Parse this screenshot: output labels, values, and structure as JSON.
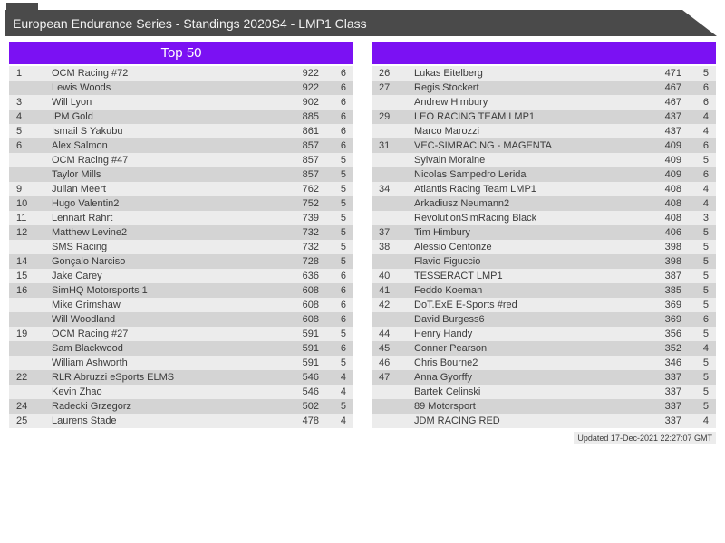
{
  "header": {
    "title": "European Endurance Series - Standings 2020S4 - LMP1 Class"
  },
  "left_table": {
    "title": "Top 50",
    "rows": [
      {
        "rank": "1",
        "name": "OCM Racing #72",
        "pts": "922",
        "races": "6"
      },
      {
        "rank": "",
        "name": "Lewis Woods",
        "pts": "922",
        "races": "6"
      },
      {
        "rank": "3",
        "name": "Will Lyon",
        "pts": "902",
        "races": "6"
      },
      {
        "rank": "4",
        "name": "IPM Gold",
        "pts": "885",
        "races": "6"
      },
      {
        "rank": "5",
        "name": "Ismail S Yakubu",
        "pts": "861",
        "races": "6"
      },
      {
        "rank": "6",
        "name": "Alex Salmon",
        "pts": "857",
        "races": "6"
      },
      {
        "rank": "",
        "name": "OCM Racing #47",
        "pts": "857",
        "races": "5"
      },
      {
        "rank": "",
        "name": "Taylor Mills",
        "pts": "857",
        "races": "5"
      },
      {
        "rank": "9",
        "name": "Julian Meert",
        "pts": "762",
        "races": "5"
      },
      {
        "rank": "10",
        "name": "Hugo Valentin2",
        "pts": "752",
        "races": "5"
      },
      {
        "rank": "11",
        "name": "Lennart Rahrt",
        "pts": "739",
        "races": "5"
      },
      {
        "rank": "12",
        "name": "Matthew Levine2",
        "pts": "732",
        "races": "5"
      },
      {
        "rank": "",
        "name": "SMS Racing",
        "pts": "732",
        "races": "5"
      },
      {
        "rank": "14",
        "name": "Gonçalo Narciso",
        "pts": "728",
        "races": "5"
      },
      {
        "rank": "15",
        "name": "Jake Carey",
        "pts": "636",
        "races": "6"
      },
      {
        "rank": "16",
        "name": "SimHQ Motorsports 1",
        "pts": "608",
        "races": "6"
      },
      {
        "rank": "",
        "name": "Mike Grimshaw",
        "pts": "608",
        "races": "6"
      },
      {
        "rank": "",
        "name": "Will Woodland",
        "pts": "608",
        "races": "6"
      },
      {
        "rank": "19",
        "name": "OCM Racing #27",
        "pts": "591",
        "races": "5"
      },
      {
        "rank": "",
        "name": "Sam Blackwood",
        "pts": "591",
        "races": "6"
      },
      {
        "rank": "",
        "name": "William Ashworth",
        "pts": "591",
        "races": "5"
      },
      {
        "rank": "22",
        "name": "RLR Abruzzi eSports ELMS",
        "pts": "546",
        "races": "4"
      },
      {
        "rank": "",
        "name": "Kevin Zhao",
        "pts": "546",
        "races": "4"
      },
      {
        "rank": "24",
        "name": "Radecki Grzegorz",
        "pts": "502",
        "races": "5"
      },
      {
        "rank": "25",
        "name": "Laurens Stade",
        "pts": "478",
        "races": "4"
      }
    ]
  },
  "right_table": {
    "title": "",
    "rows": [
      {
        "rank": "26",
        "name": "Lukas Eitelberg",
        "pts": "471",
        "races": "5"
      },
      {
        "rank": "27",
        "name": "Regis Stockert",
        "pts": "467",
        "races": "6"
      },
      {
        "rank": "",
        "name": "Andrew Himbury",
        "pts": "467",
        "races": "6"
      },
      {
        "rank": "29",
        "name": "LEO RACING TEAM LMP1",
        "pts": "437",
        "races": "4"
      },
      {
        "rank": "",
        "name": "Marco Marozzi",
        "pts": "437",
        "races": "4"
      },
      {
        "rank": "31",
        "name": "VEC-SIMRACING - MAGENTA",
        "pts": "409",
        "races": "6"
      },
      {
        "rank": "",
        "name": "Sylvain Moraine",
        "pts": "409",
        "races": "5"
      },
      {
        "rank": "",
        "name": "Nicolas Sampedro Lerida",
        "pts": "409",
        "races": "6"
      },
      {
        "rank": "34",
        "name": "Atlantis Racing Team LMP1",
        "pts": "408",
        "races": "4"
      },
      {
        "rank": "",
        "name": "Arkadiusz Neumann2",
        "pts": "408",
        "races": "4"
      },
      {
        "rank": "",
        "name": "RevolutionSimRacing Black",
        "pts": "408",
        "races": "3"
      },
      {
        "rank": "37",
        "name": "Tim Himbury",
        "pts": "406",
        "races": "5"
      },
      {
        "rank": "38",
        "name": "Alessio Centonze",
        "pts": "398",
        "races": "5"
      },
      {
        "rank": "",
        "name": "Flavio Figuccio",
        "pts": "398",
        "races": "5"
      },
      {
        "rank": "40",
        "name": "TESSERACT LMP1",
        "pts": "387",
        "races": "5"
      },
      {
        "rank": "41",
        "name": "Feddo Koeman",
        "pts": "385",
        "races": "5"
      },
      {
        "rank": "42",
        "name": "DoT.ExE E-Sports #red",
        "pts": "369",
        "races": "5"
      },
      {
        "rank": "",
        "name": "David Burgess6",
        "pts": "369",
        "races": "6"
      },
      {
        "rank": "44",
        "name": "Henry Handy",
        "pts": "356",
        "races": "5"
      },
      {
        "rank": "45",
        "name": "Conner Pearson",
        "pts": "352",
        "races": "4"
      },
      {
        "rank": "46",
        "name": "Chris Bourne2",
        "pts": "346",
        "races": "5"
      },
      {
        "rank": "47",
        "name": "Anna Gyorffy",
        "pts": "337",
        "races": "5"
      },
      {
        "rank": "",
        "name": "Bartek Celinski",
        "pts": "337",
        "races": "5"
      },
      {
        "rank": "",
        "name": "89 Motorsport",
        "pts": "337",
        "races": "5"
      },
      {
        "rank": "",
        "name": "JDM RACING RED",
        "pts": "337",
        "races": "4"
      }
    ]
  },
  "footer": {
    "updated": "Updated 17-Dec-2021 22:27:07 GMT"
  },
  "colors": {
    "accent_purple": "#7b11f3",
    "banner_gray": "#4a4a4a",
    "row_light": "#ececec",
    "row_dark": "#d4d4d4"
  }
}
